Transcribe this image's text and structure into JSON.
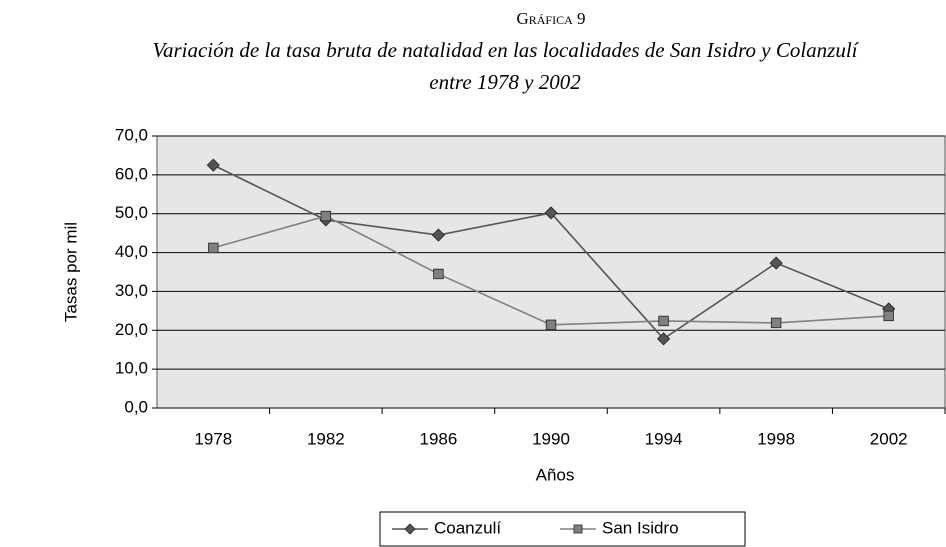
{
  "chart_data": {
    "type": "line",
    "title": "Gráfica 9",
    "subtitle": [
      "Variación de la tasa bruta de natalidad en las localidades de San Isidro y Colanzulí",
      "entre 1978 y 2002"
    ],
    "x_label": "Años",
    "y_label": "Tasas por mil",
    "categories": [
      "1978",
      "1982",
      "1986",
      "1990",
      "1994",
      "1998",
      "2002"
    ],
    "series": [
      {
        "name": "Coanzulí",
        "color": "#555555",
        "marker": "diamond",
        "values": [
          62.5,
          48.4,
          44.5,
          50.2,
          17.8,
          37.3,
          25.5
        ]
      },
      {
        "name": "San Isidro",
        "color": "#808080",
        "marker": "square",
        "values": [
          41.2,
          49.4,
          34.5,
          21.4,
          22.4,
          21.9,
          23.7
        ]
      }
    ],
    "ylim": [
      0,
      70
    ],
    "yticks": [
      {
        "value": 0,
        "label": "0,0"
      },
      {
        "value": 10,
        "label": "10,0"
      },
      {
        "value": 20,
        "label": "20,0"
      },
      {
        "value": 30,
        "label": "30,0"
      },
      {
        "value": 40,
        "label": "40,0"
      },
      {
        "value": 50,
        "label": "50,0"
      },
      {
        "value": 60,
        "label": "60,0"
      },
      {
        "value": 70,
        "label": "70,0"
      }
    ],
    "grid": true,
    "legend": "bottom"
  }
}
